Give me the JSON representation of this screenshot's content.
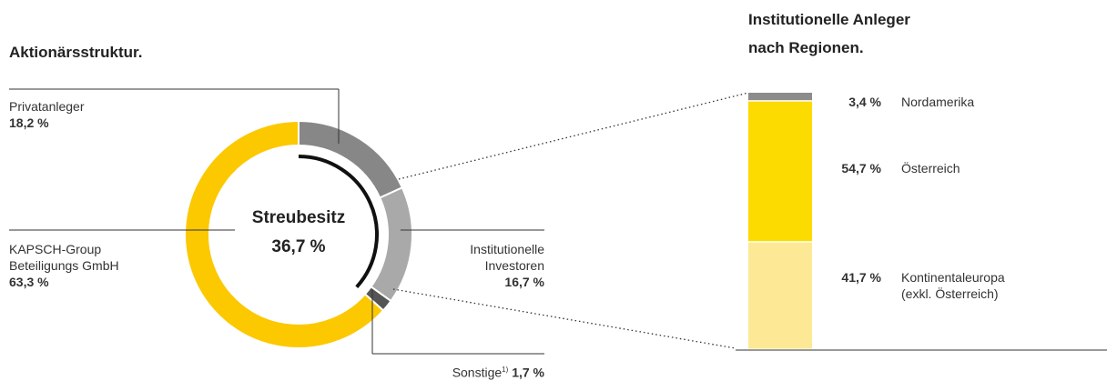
{
  "chart_data": [
    {
      "type": "donut",
      "title": "Aktionärsstruktur.",
      "categories": [
        "Privatanleger",
        "Institutionelle Investoren",
        "Sonstige",
        "KAPSCH-Group Beteiligungs GmbH"
      ],
      "category_notes": [
        null,
        null,
        "1)",
        null
      ],
      "values": [
        18.2,
        16.7,
        1.7,
        63.3
      ],
      "value_labels": [
        "18,2 %",
        "16,7 %",
        "1,7 %",
        "63,3 %"
      ],
      "colors": [
        "#878787",
        "#a9a9a9",
        "#555555",
        "#fcc800"
      ],
      "center_label": "Streubesitz",
      "center_value": 36.7,
      "center_value_label": "36,7 %"
    },
    {
      "type": "stacked_bar",
      "title": "Institutionelle Anleger nach Regionen.",
      "categories": [
        "Nordamerika",
        "Österreich",
        "Kontinentaleuropa (exkl. Österreich)"
      ],
      "values": [
        3.4,
        54.7,
        41.7
      ],
      "value_labels": [
        "3,4 %",
        "54,7 %",
        "41,7 %"
      ],
      "colors": [
        "#8c8c8c",
        "#fcdb00",
        "#fde995"
      ]
    }
  ]
}
